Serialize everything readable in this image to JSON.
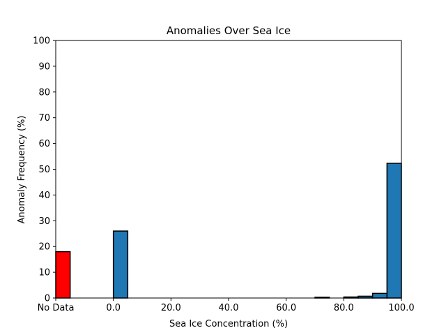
{
  "chart_data": {
    "type": "bar",
    "title": "Anomalies Over Sea Ice",
    "xlabel": "Sea Ice Concentration (%)",
    "ylabel": "Anomaly Frequency (%)",
    "ylim": [
      0,
      100
    ],
    "yticks": [
      "0",
      "10",
      "20",
      "30",
      "40",
      "50",
      "60",
      "70",
      "80",
      "90",
      "100"
    ],
    "xtick_labels": [
      "No Data",
      "0.0",
      "20.0",
      "40.0",
      "60.0",
      "80.0",
      "100.0"
    ],
    "xlim": [
      -20,
      100
    ],
    "xtick_values": [
      -20,
      0,
      20,
      40,
      60,
      80,
      100
    ],
    "bin_width": 5,
    "nodata_bar": {
      "x_start": -20,
      "value": 18,
      "color": "#ff0000"
    },
    "bars": {
      "color": "#1f77b4",
      "x_start": [
        -15,
        -10,
        -5,
        0,
        5,
        10,
        15,
        20,
        25,
        30,
        35,
        40,
        45,
        50,
        55,
        60,
        65,
        70,
        75,
        80,
        85,
        90,
        95
      ],
      "values": [
        0,
        0,
        0,
        26,
        0,
        0,
        0,
        0,
        0,
        0,
        0,
        0,
        0,
        0,
        0,
        0,
        0,
        0.3,
        0,
        0.4,
        0.7,
        1.8,
        52.3
      ]
    },
    "grid": false
  }
}
